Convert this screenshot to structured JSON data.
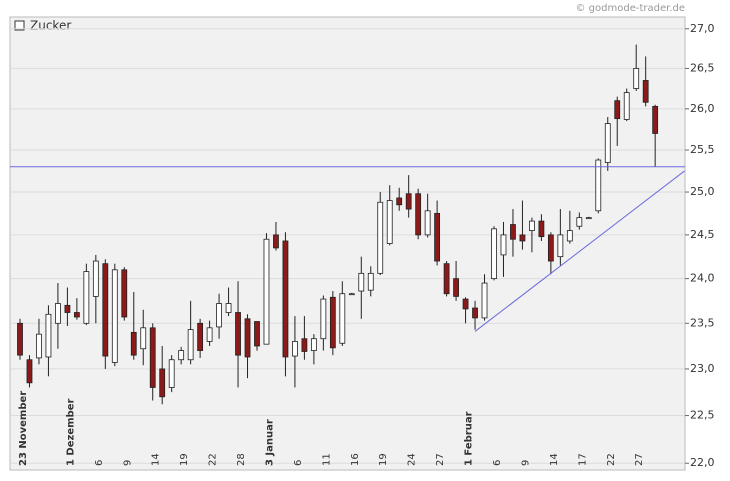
{
  "chart_data": {
    "type": "candlestick",
    "credit": "© godmode-trader.de",
    "log_scale": true,
    "grid": true,
    "ylim": [
      21.93,
      27.15
    ],
    "yticks": [
      {
        "value": 22,
        "label": "22,0"
      },
      {
        "value": 22.5,
        "label": "22,5"
      },
      {
        "value": 23,
        "label": "23,0"
      },
      {
        "value": 23.5,
        "label": "23,5"
      },
      {
        "value": 24,
        "label": "24,0"
      },
      {
        "value": 24.5,
        "label": "24,5"
      },
      {
        "value": 25,
        "label": "25,0"
      },
      {
        "value": 25.5,
        "label": "25,5"
      },
      {
        "value": 26,
        "label": "26,0"
      },
      {
        "value": 26.5,
        "label": "26,5"
      },
      {
        "value": 27,
        "label": "27,0"
      }
    ],
    "categories": [
      "23 November",
      null,
      null,
      null,
      null,
      "1 Dezember",
      null,
      null,
      "6",
      null,
      null,
      "9",
      null,
      null,
      "14",
      null,
      null,
      "19",
      null,
      null,
      "22",
      null,
      null,
      "28",
      null,
      null,
      "3 Januar",
      null,
      null,
      "6",
      null,
      null,
      "11",
      null,
      null,
      "16",
      null,
      null,
      "19",
      null,
      null,
      "24",
      null,
      null,
      "27",
      null,
      null,
      "1 Februar",
      null,
      null,
      "6",
      null,
      null,
      "9",
      null,
      null,
      "14",
      null,
      null,
      "17",
      null,
      null,
      "22",
      null,
      null,
      "27",
      null,
      null
    ],
    "series": [
      {
        "name": "Zucker",
        "up_color": "#ffffff",
        "down_color": "#8b1a1a",
        "open": [
          23.5,
          23.1,
          23.12,
          23.13,
          23.5,
          23.7,
          23.62,
          23.5,
          23.8,
          24.17,
          23.07,
          24.1,
          23.4,
          23.22,
          23.45,
          23.0,
          22.8,
          23.1,
          23.1,
          23.5,
          23.3,
          23.46,
          23.62,
          23.62,
          23.55,
          23.52,
          23.27,
          24.5,
          24.43,
          23.14,
          23.33,
          23.2,
          23.33,
          23.79,
          23.28,
          23.83,
          23.86,
          23.87,
          24.06,
          24.4,
          24.93,
          24.98,
          24.98,
          24.5,
          24.75,
          24.17,
          24.0,
          23.77,
          23.67,
          23.56,
          24.0,
          24.27,
          24.62,
          24.5,
          24.55,
          24.66,
          24.5,
          24.25,
          24.43,
          24.6,
          24.7,
          24.78,
          25.35,
          26.1,
          25.87,
          26.25,
          26.35,
          26.03
        ],
        "high": [
          23.55,
          23.15,
          23.55,
          23.7,
          23.95,
          23.9,
          23.78,
          24.17,
          24.27,
          24.22,
          24.17,
          24.13,
          23.85,
          23.65,
          23.5,
          23.25,
          23.15,
          23.24,
          23.75,
          23.55,
          23.53,
          23.83,
          23.9,
          23.97,
          23.6,
          23.52,
          24.52,
          24.65,
          24.53,
          23.58,
          23.58,
          23.38,
          23.81,
          23.86,
          23.97,
          23.84,
          24.25,
          24.14,
          25.0,
          25.08,
          25.05,
          25.2,
          25.04,
          24.98,
          24.9,
          24.2,
          24.2,
          23.79,
          23.75,
          24.05,
          24.6,
          24.65,
          24.8,
          24.9,
          24.7,
          24.74,
          24.53,
          24.8,
          24.78,
          24.76,
          24.71,
          25.4,
          25.9,
          26.15,
          26.25,
          26.8,
          26.65,
          26.05
        ],
        "low": [
          23.1,
          22.8,
          23.05,
          22.92,
          23.22,
          23.47,
          23.54,
          23.48,
          23.5,
          23.0,
          23.03,
          23.53,
          23.1,
          23.04,
          22.66,
          22.62,
          22.75,
          23.05,
          23.05,
          23.12,
          23.25,
          23.33,
          23.58,
          22.8,
          22.9,
          23.2,
          23.27,
          24.32,
          22.92,
          22.8,
          23.1,
          23.05,
          23.2,
          23.15,
          23.25,
          23.82,
          23.55,
          23.8,
          24.04,
          24.38,
          24.78,
          24.7,
          24.45,
          24.47,
          24.15,
          23.8,
          23.75,
          23.5,
          23.43,
          23.53,
          23.98,
          24.02,
          24.25,
          24.33,
          24.3,
          24.43,
          24.05,
          24.15,
          24.4,
          24.56,
          24.69,
          24.75,
          25.25,
          25.55,
          25.85,
          26.22,
          26.03,
          25.3
        ],
        "close": [
          23.15,
          22.85,
          23.38,
          23.6,
          23.72,
          23.62,
          23.57,
          24.08,
          24.2,
          23.14,
          24.1,
          23.57,
          23.15,
          23.45,
          22.8,
          22.7,
          23.1,
          23.2,
          23.43,
          23.2,
          23.45,
          23.72,
          23.72,
          23.15,
          23.13,
          23.25,
          24.45,
          24.35,
          23.13,
          23.3,
          23.19,
          23.33,
          23.77,
          23.23,
          23.83,
          23.83,
          24.06,
          24.06,
          24.88,
          24.9,
          24.85,
          24.8,
          24.5,
          24.78,
          24.2,
          23.83,
          23.8,
          23.66,
          23.56,
          23.95,
          24.57,
          24.5,
          24.45,
          24.43,
          24.66,
          24.48,
          24.2,
          24.5,
          24.55,
          24.7,
          24.7,
          25.38,
          25.82,
          25.88,
          26.2,
          26.5,
          26.08,
          25.7
        ]
      }
    ],
    "hline": {
      "value": 25.3,
      "color": "#6a6ae0"
    },
    "trendline": {
      "start": [
        48,
        23.41
      ],
      "end": [
        70.1,
        25.25
      ],
      "color": "#6a6ae0"
    }
  }
}
